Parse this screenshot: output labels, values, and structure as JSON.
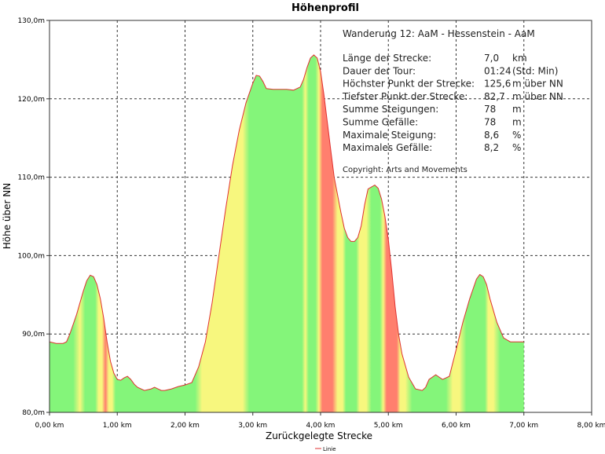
{
  "chart_data": {
    "type": "area",
    "title": "Höhenprofil",
    "xlabel": "Zurückgelegte Strecke",
    "ylabel": "Höhe über NN",
    "xlim": [
      0,
      8
    ],
    "ylim": [
      80,
      130
    ],
    "x_ticks": [
      "0,00 km",
      "1,00 km",
      "2,00 km",
      "3,00 km",
      "4,00 km",
      "5,00 km",
      "6,00 km",
      "7,00 km",
      "8,00 km"
    ],
    "y_ticks": [
      "80,0m",
      "90,0m",
      "100,0m",
      "110,0m",
      "120,0m",
      "130,0m"
    ],
    "grid": true,
    "legend": {
      "position": "bottom-center",
      "entries": [
        "Linie"
      ]
    },
    "series": [
      {
        "name": "Linie",
        "color": "#e03030",
        "x": [
          0.0,
          0.1,
          0.2,
          0.25,
          0.3,
          0.4,
          0.5,
          0.55,
          0.6,
          0.65,
          0.7,
          0.75,
          0.8,
          0.85,
          0.9,
          0.95,
          1.0,
          1.05,
          1.1,
          1.15,
          1.2,
          1.25,
          1.3,
          1.4,
          1.5,
          1.55,
          1.6,
          1.65,
          1.7,
          1.8,
          1.9,
          2.0,
          2.1,
          2.2,
          2.3,
          2.4,
          2.5,
          2.6,
          2.7,
          2.8,
          2.9,
          3.0,
          3.05,
          3.1,
          3.15,
          3.2,
          3.3,
          3.4,
          3.5,
          3.6,
          3.7,
          3.75,
          3.8,
          3.85,
          3.9,
          3.95,
          4.0,
          4.05,
          4.1,
          4.15,
          4.2,
          4.3,
          4.35,
          4.4,
          4.45,
          4.5,
          4.55,
          4.6,
          4.65,
          4.7,
          4.8,
          4.85,
          4.9,
          4.95,
          5.0,
          5.05,
          5.1,
          5.15,
          5.2,
          5.3,
          5.4,
          5.5,
          5.55,
          5.6,
          5.7,
          5.75,
          5.8,
          5.9,
          6.0,
          6.1,
          6.2,
          6.3,
          6.35,
          6.4,
          6.45,
          6.5,
          6.6,
          6.7,
          6.8,
          6.9,
          7.0
        ],
        "y": [
          89.0,
          88.8,
          88.8,
          89.0,
          90.0,
          92.5,
          95.5,
          96.8,
          97.5,
          97.3,
          96.3,
          94.5,
          92.0,
          89.0,
          86.5,
          85.0,
          84.2,
          84.1,
          84.4,
          84.6,
          84.2,
          83.6,
          83.2,
          82.8,
          83.0,
          83.2,
          83.0,
          82.8,
          82.8,
          83.0,
          83.3,
          83.5,
          83.8,
          85.8,
          89.0,
          94.0,
          100.0,
          106.0,
          111.5,
          116.0,
          119.5,
          122.0,
          123.0,
          122.9,
          122.2,
          121.3,
          121.2,
          121.2,
          121.2,
          121.1,
          121.5,
          122.5,
          124.0,
          125.2,
          125.6,
          125.2,
          123.5,
          120.5,
          117.0,
          113.5,
          110.0,
          105.5,
          103.5,
          102.3,
          101.8,
          101.8,
          102.3,
          103.8,
          106.5,
          108.5,
          109.0,
          108.6,
          107.2,
          105.0,
          102.0,
          98.0,
          93.5,
          90.0,
          87.5,
          84.5,
          83.0,
          82.8,
          83.2,
          84.2,
          84.8,
          84.5,
          84.2,
          84.6,
          88.0,
          91.5,
          94.5,
          97.0,
          97.6,
          97.3,
          96.3,
          94.5,
          91.5,
          89.5,
          89.0,
          89.0,
          89.0
        ]
      }
    ],
    "gradient_colors": {
      "flat": "#84f57a",
      "moderate": "#f7f77e",
      "steep": "#ff7f6e"
    }
  },
  "info_box": {
    "title": "Wanderung 12: AaM - Hessenstein - AaM",
    "rows": [
      {
        "label": "Länge der Strecke:",
        "value": "7,0",
        "unit": "km"
      },
      {
        "label": "Dauer der Tour:",
        "value": "01:24",
        "unit": "(Std: Min)"
      },
      {
        "label": "Höchster Punkt der Strecke:",
        "value": "125,6",
        "unit": "m über NN"
      },
      {
        "label": "Tiefster Punkt der Strecke:",
        "value": "82,7",
        "unit": "m über NN"
      },
      {
        "label": "Summe Steigungen:",
        "value": "78",
        "unit": "m"
      },
      {
        "label": "Summe Gefälle:",
        "value": "78",
        "unit": "m"
      },
      {
        "label": "Maximale Steigung:",
        "value": "8,6",
        "unit": "%"
      },
      {
        "label": "Maximales Gefälle:",
        "value": "8,2",
        "unit": "%"
      }
    ],
    "copyright": "Copyright: Arts and Movements"
  }
}
